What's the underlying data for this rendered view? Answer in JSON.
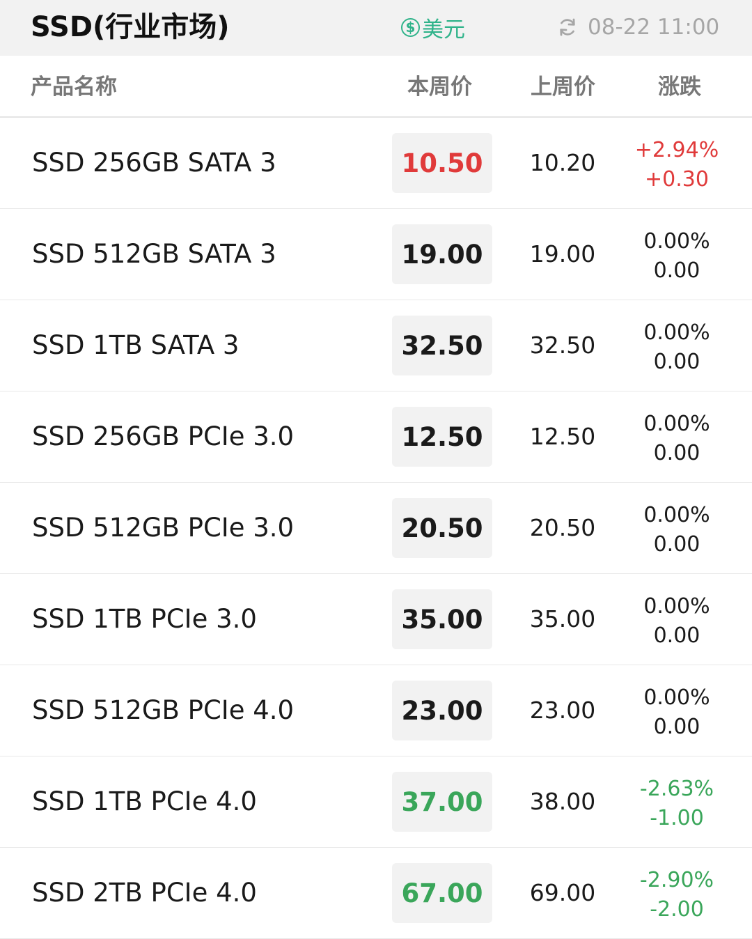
{
  "header": {
    "title": "SSD(行业市场)",
    "currency_symbol": "$",
    "currency_label": "美元",
    "update_time": "08-22 11:00",
    "refresh_icon": "refresh-icon"
  },
  "columns": {
    "name": "产品名称",
    "current": "本周价",
    "last": "上周价",
    "change": "涨跌"
  },
  "colors": {
    "up": "#e03a3a",
    "down": "#3aa65a",
    "flat": "#1a1a1a",
    "accent": "#2fb38a"
  },
  "rows": [
    {
      "name": "SSD 256GB SATA 3",
      "current": "10.50",
      "last": "10.20",
      "pct": "+2.94%",
      "diff": "+0.30",
      "trend": "up"
    },
    {
      "name": "SSD 512GB SATA 3",
      "current": "19.00",
      "last": "19.00",
      "pct": "0.00%",
      "diff": "0.00",
      "trend": "flat"
    },
    {
      "name": "SSD 1TB SATA 3",
      "current": "32.50",
      "last": "32.50",
      "pct": "0.00%",
      "diff": "0.00",
      "trend": "flat"
    },
    {
      "name": "SSD 256GB PCIe 3.0",
      "current": "12.50",
      "last": "12.50",
      "pct": "0.00%",
      "diff": "0.00",
      "trend": "flat"
    },
    {
      "name": "SSD 512GB PCIe 3.0",
      "current": "20.50",
      "last": "20.50",
      "pct": "0.00%",
      "diff": "0.00",
      "trend": "flat"
    },
    {
      "name": "SSD 1TB PCIe 3.0",
      "current": "35.00",
      "last": "35.00",
      "pct": "0.00%",
      "diff": "0.00",
      "trend": "flat"
    },
    {
      "name": "SSD 512GB PCIe 4.0",
      "current": "23.00",
      "last": "23.00",
      "pct": "0.00%",
      "diff": "0.00",
      "trend": "flat"
    },
    {
      "name": "SSD 1TB PCIe 4.0",
      "current": "37.00",
      "last": "38.00",
      "pct": "-2.63%",
      "diff": "-1.00",
      "trend": "down"
    },
    {
      "name": "SSD 2TB PCIe 4.0",
      "current": "67.00",
      "last": "69.00",
      "pct": "-2.90%",
      "diff": "-2.00",
      "trend": "down"
    }
  ]
}
